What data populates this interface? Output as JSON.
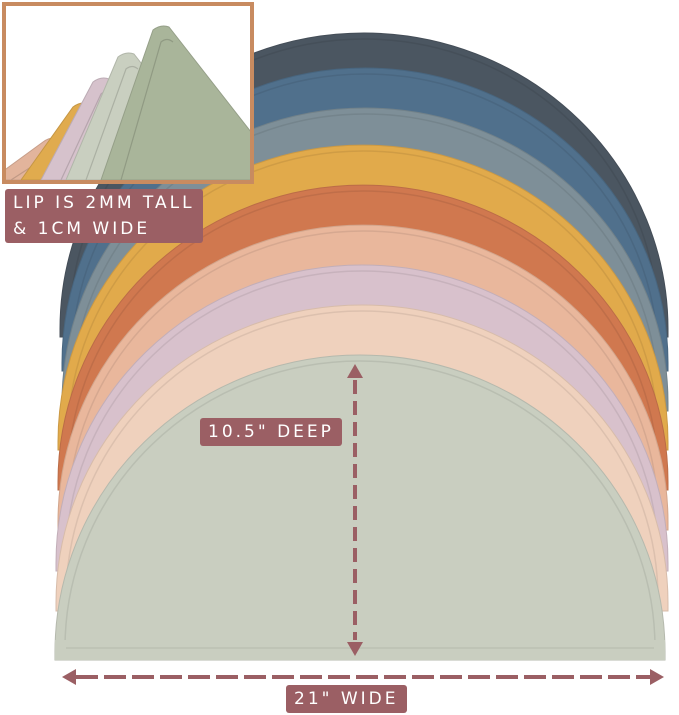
{
  "annotations": {
    "lip": [
      "LIP IS 2MM TALL",
      "& 1CM WIDE"
    ],
    "depth": "10.5\" DEEP",
    "width": "21\" WIDE"
  },
  "colors": {
    "mats": [
      "#4b5661",
      "#50708c",
      "#7e8f98",
      "#e1aa4b",
      "#d0784f",
      "#e9b79c",
      "#d8c1cc",
      "#efd1bd",
      "#c9cec0"
    ],
    "label_bg": "#9b5f64",
    "inset_border": "#c88b60",
    "arrow": "#9b5f64"
  },
  "inset_mats": [
    "#e2b49c",
    "#e0ab4e",
    "#d6c2cc",
    "#c9cfc0",
    "#a9b59a"
  ]
}
